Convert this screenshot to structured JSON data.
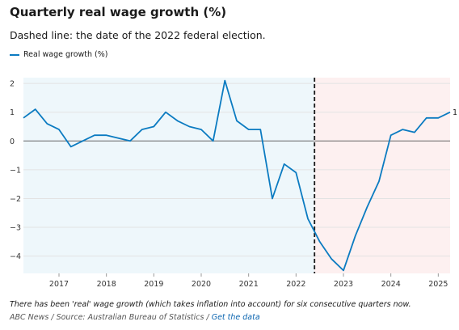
{
  "header": {
    "title": "Quarterly real wage growth (%)",
    "subtitle": "Dashed line: the date of the 2022 federal election."
  },
  "legend": {
    "label": "Real wage growth (%)"
  },
  "footer": {
    "note": "There has been 'real' wage growth (which takes inflation into account) for six consecutive quarters now.",
    "source": "ABC News / Source: Australian Bureau of Statistics /",
    "link": "Get the data"
  },
  "colors": {
    "line": "#0b7bc1",
    "before_shade": "#eef7fb",
    "after_shade": "#fdf0f0",
    "zero_line": "#666666",
    "grid": "#e3e3e3"
  },
  "chart_data": {
    "type": "line",
    "title": "Quarterly real wage growth (%)",
    "xlabel": "",
    "ylabel": "",
    "ylim": [
      -4.6,
      2.2
    ],
    "xlim": [
      2016.25,
      2025.25
    ],
    "yticks": [
      2,
      1,
      0,
      -1,
      -2,
      -3,
      -4
    ],
    "ytick_labels": [
      "2",
      "1",
      "0",
      "−1",
      "−2",
      "−3",
      "−4"
    ],
    "xticks": [
      2017,
      2018,
      2019,
      2020,
      2021,
      2022,
      2023,
      2024,
      2025
    ],
    "xtick_labels": [
      "2017",
      "2018",
      "2019",
      "2020",
      "2021",
      "2022",
      "2023",
      "2024",
      "2025"
    ],
    "election_date": 2022.39,
    "end_label": "1",
    "grid": true,
    "legend_position": "top-left",
    "series": [
      {
        "name": "Real wage growth (%)",
        "x": [
          2016.25,
          2016.5,
          2016.75,
          2017.0,
          2017.25,
          2017.5,
          2017.75,
          2018.0,
          2018.25,
          2018.5,
          2018.75,
          2019.0,
          2019.25,
          2019.5,
          2019.75,
          2020.0,
          2020.25,
          2020.5,
          2020.75,
          2021.0,
          2021.25,
          2021.5,
          2021.75,
          2022.0,
          2022.25,
          2022.5,
          2022.75,
          2023.0,
          2023.25,
          2023.5,
          2023.75,
          2024.0,
          2024.25,
          2024.5,
          2024.75,
          2025.0,
          2025.25
        ],
        "values": [
          0.8,
          1.1,
          0.6,
          0.4,
          -0.2,
          0.0,
          0.2,
          0.2,
          0.1,
          0.0,
          0.4,
          0.5,
          1.0,
          0.7,
          0.5,
          0.4,
          0.0,
          2.1,
          0.7,
          0.4,
          0.4,
          -2.0,
          -0.8,
          -1.1,
          -2.7,
          -3.5,
          -4.1,
          -4.5,
          -3.3,
          -2.3,
          -1.4,
          0.2,
          0.4,
          0.3,
          0.8,
          0.8,
          1.0
        ]
      }
    ]
  }
}
